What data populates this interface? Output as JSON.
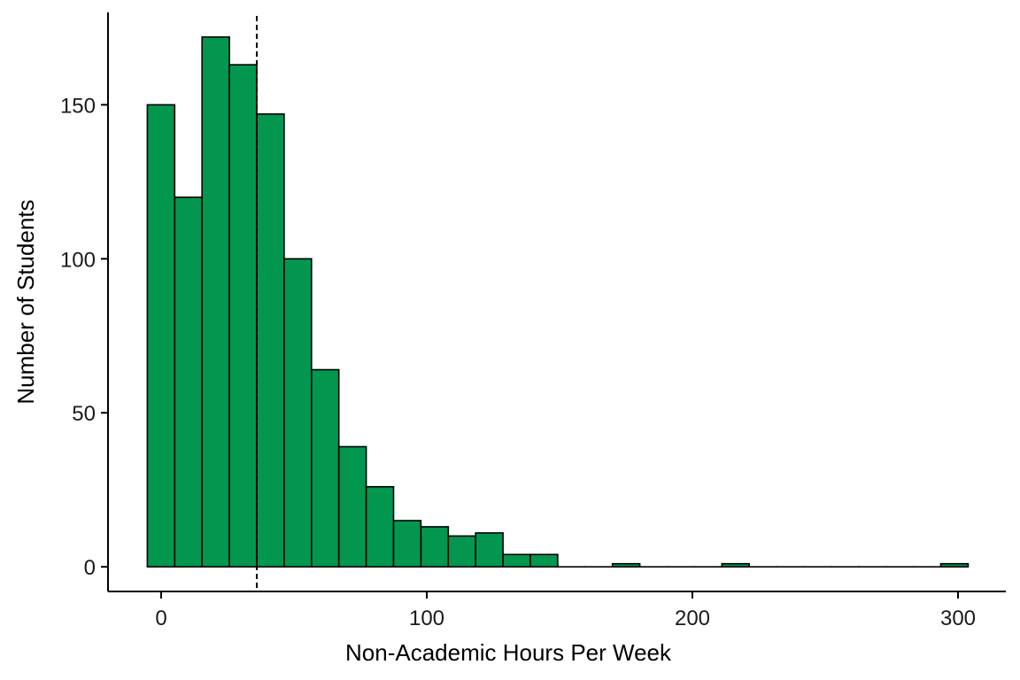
{
  "chart_data": {
    "type": "bar",
    "subtype": "histogram",
    "xlabel": "Non-Academic Hours Per Week",
    "ylabel": "Number of Students",
    "bin_width": 10.3,
    "bins": [
      {
        "x_start": -5.2,
        "x_end": 5.1,
        "count": 150
      },
      {
        "x_start": 5.1,
        "x_end": 15.4,
        "count": 120
      },
      {
        "x_start": 15.4,
        "x_end": 25.7,
        "count": 172
      },
      {
        "x_start": 25.7,
        "x_end": 36.0,
        "count": 163
      },
      {
        "x_start": 36.0,
        "x_end": 46.3,
        "count": 147
      },
      {
        "x_start": 46.3,
        "x_end": 56.6,
        "count": 100
      },
      {
        "x_start": 56.6,
        "x_end": 66.9,
        "count": 64
      },
      {
        "x_start": 66.9,
        "x_end": 77.2,
        "count": 39
      },
      {
        "x_start": 77.2,
        "x_end": 87.5,
        "count": 26
      },
      {
        "x_start": 87.5,
        "x_end": 97.8,
        "count": 15
      },
      {
        "x_start": 97.8,
        "x_end": 108.1,
        "count": 13
      },
      {
        "x_start": 108.1,
        "x_end": 118.4,
        "count": 10
      },
      {
        "x_start": 118.4,
        "x_end": 128.7,
        "count": 11
      },
      {
        "x_start": 128.7,
        "x_end": 139.0,
        "count": 4
      },
      {
        "x_start": 139.0,
        "x_end": 149.3,
        "count": 4
      },
      {
        "x_start": 149.3,
        "x_end": 159.6,
        "count": 0
      },
      {
        "x_start": 159.6,
        "x_end": 169.9,
        "count": 0
      },
      {
        "x_start": 169.9,
        "x_end": 180.2,
        "count": 1
      },
      {
        "x_start": 180.2,
        "x_end": 190.5,
        "count": 0
      },
      {
        "x_start": 190.5,
        "x_end": 200.8,
        "count": 0
      },
      {
        "x_start": 200.8,
        "x_end": 211.1,
        "count": 0
      },
      {
        "x_start": 211.1,
        "x_end": 221.4,
        "count": 1
      },
      {
        "x_start": 221.4,
        "x_end": 231.7,
        "count": 0
      },
      {
        "x_start": 231.7,
        "x_end": 242.0,
        "count": 0
      },
      {
        "x_start": 242.0,
        "x_end": 252.3,
        "count": 0
      },
      {
        "x_start": 252.3,
        "x_end": 262.6,
        "count": 0
      },
      {
        "x_start": 262.6,
        "x_end": 272.9,
        "count": 0
      },
      {
        "x_start": 272.9,
        "x_end": 283.2,
        "count": 0
      },
      {
        "x_start": 283.2,
        "x_end": 293.5,
        "count": 0
      },
      {
        "x_start": 293.5,
        "x_end": 303.8,
        "count": 1
      }
    ],
    "reference_line": {
      "x": 36,
      "style": "dashed",
      "color": "#000000"
    },
    "xlim": [
      -20,
      318
    ],
    "ylim": [
      -8,
      180
    ],
    "xticks": [
      0,
      100,
      200,
      300
    ],
    "yticks": [
      0,
      50,
      100,
      150
    ],
    "bar_fill": "#03964f",
    "bar_stroke": "#000000",
    "grid": false,
    "legend": "none"
  }
}
